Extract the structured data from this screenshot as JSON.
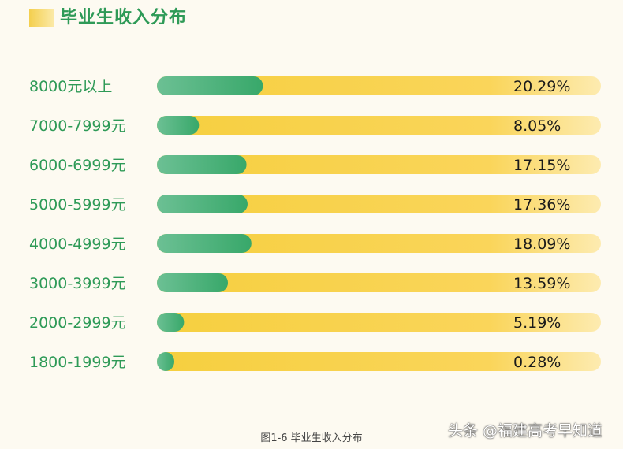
{
  "title": "毕业生收入分布",
  "caption": "图1-6 毕业生收入分布",
  "watermark": "头条 @福建高考早知道",
  "colors": {
    "label": "#2e9a57",
    "bar_fill_start": "#6cc094",
    "bar_fill_end": "#38a86a",
    "track_start": "#f6cf3f",
    "track_end": "#fdebb0",
    "value_text": "#1a1a1a"
  },
  "chart_data": {
    "type": "bar",
    "orientation": "horizontal",
    "categories": [
      "8000元以上",
      "7000-7999元",
      "6000-6999元",
      "5000-5999元",
      "4000-4999元",
      "3000-3999元",
      "2000-2999元",
      "1800-1999元"
    ],
    "values": [
      20.29,
      8.05,
      17.15,
      17.36,
      18.09,
      13.59,
      5.19,
      0.28
    ],
    "value_labels": [
      "20.29%",
      "8.05%",
      "17.15%",
      "17.36%",
      "18.09%",
      "13.59%",
      "5.19%",
      "0.28%"
    ],
    "unit": "%",
    "xlim": [
      0,
      85
    ]
  }
}
